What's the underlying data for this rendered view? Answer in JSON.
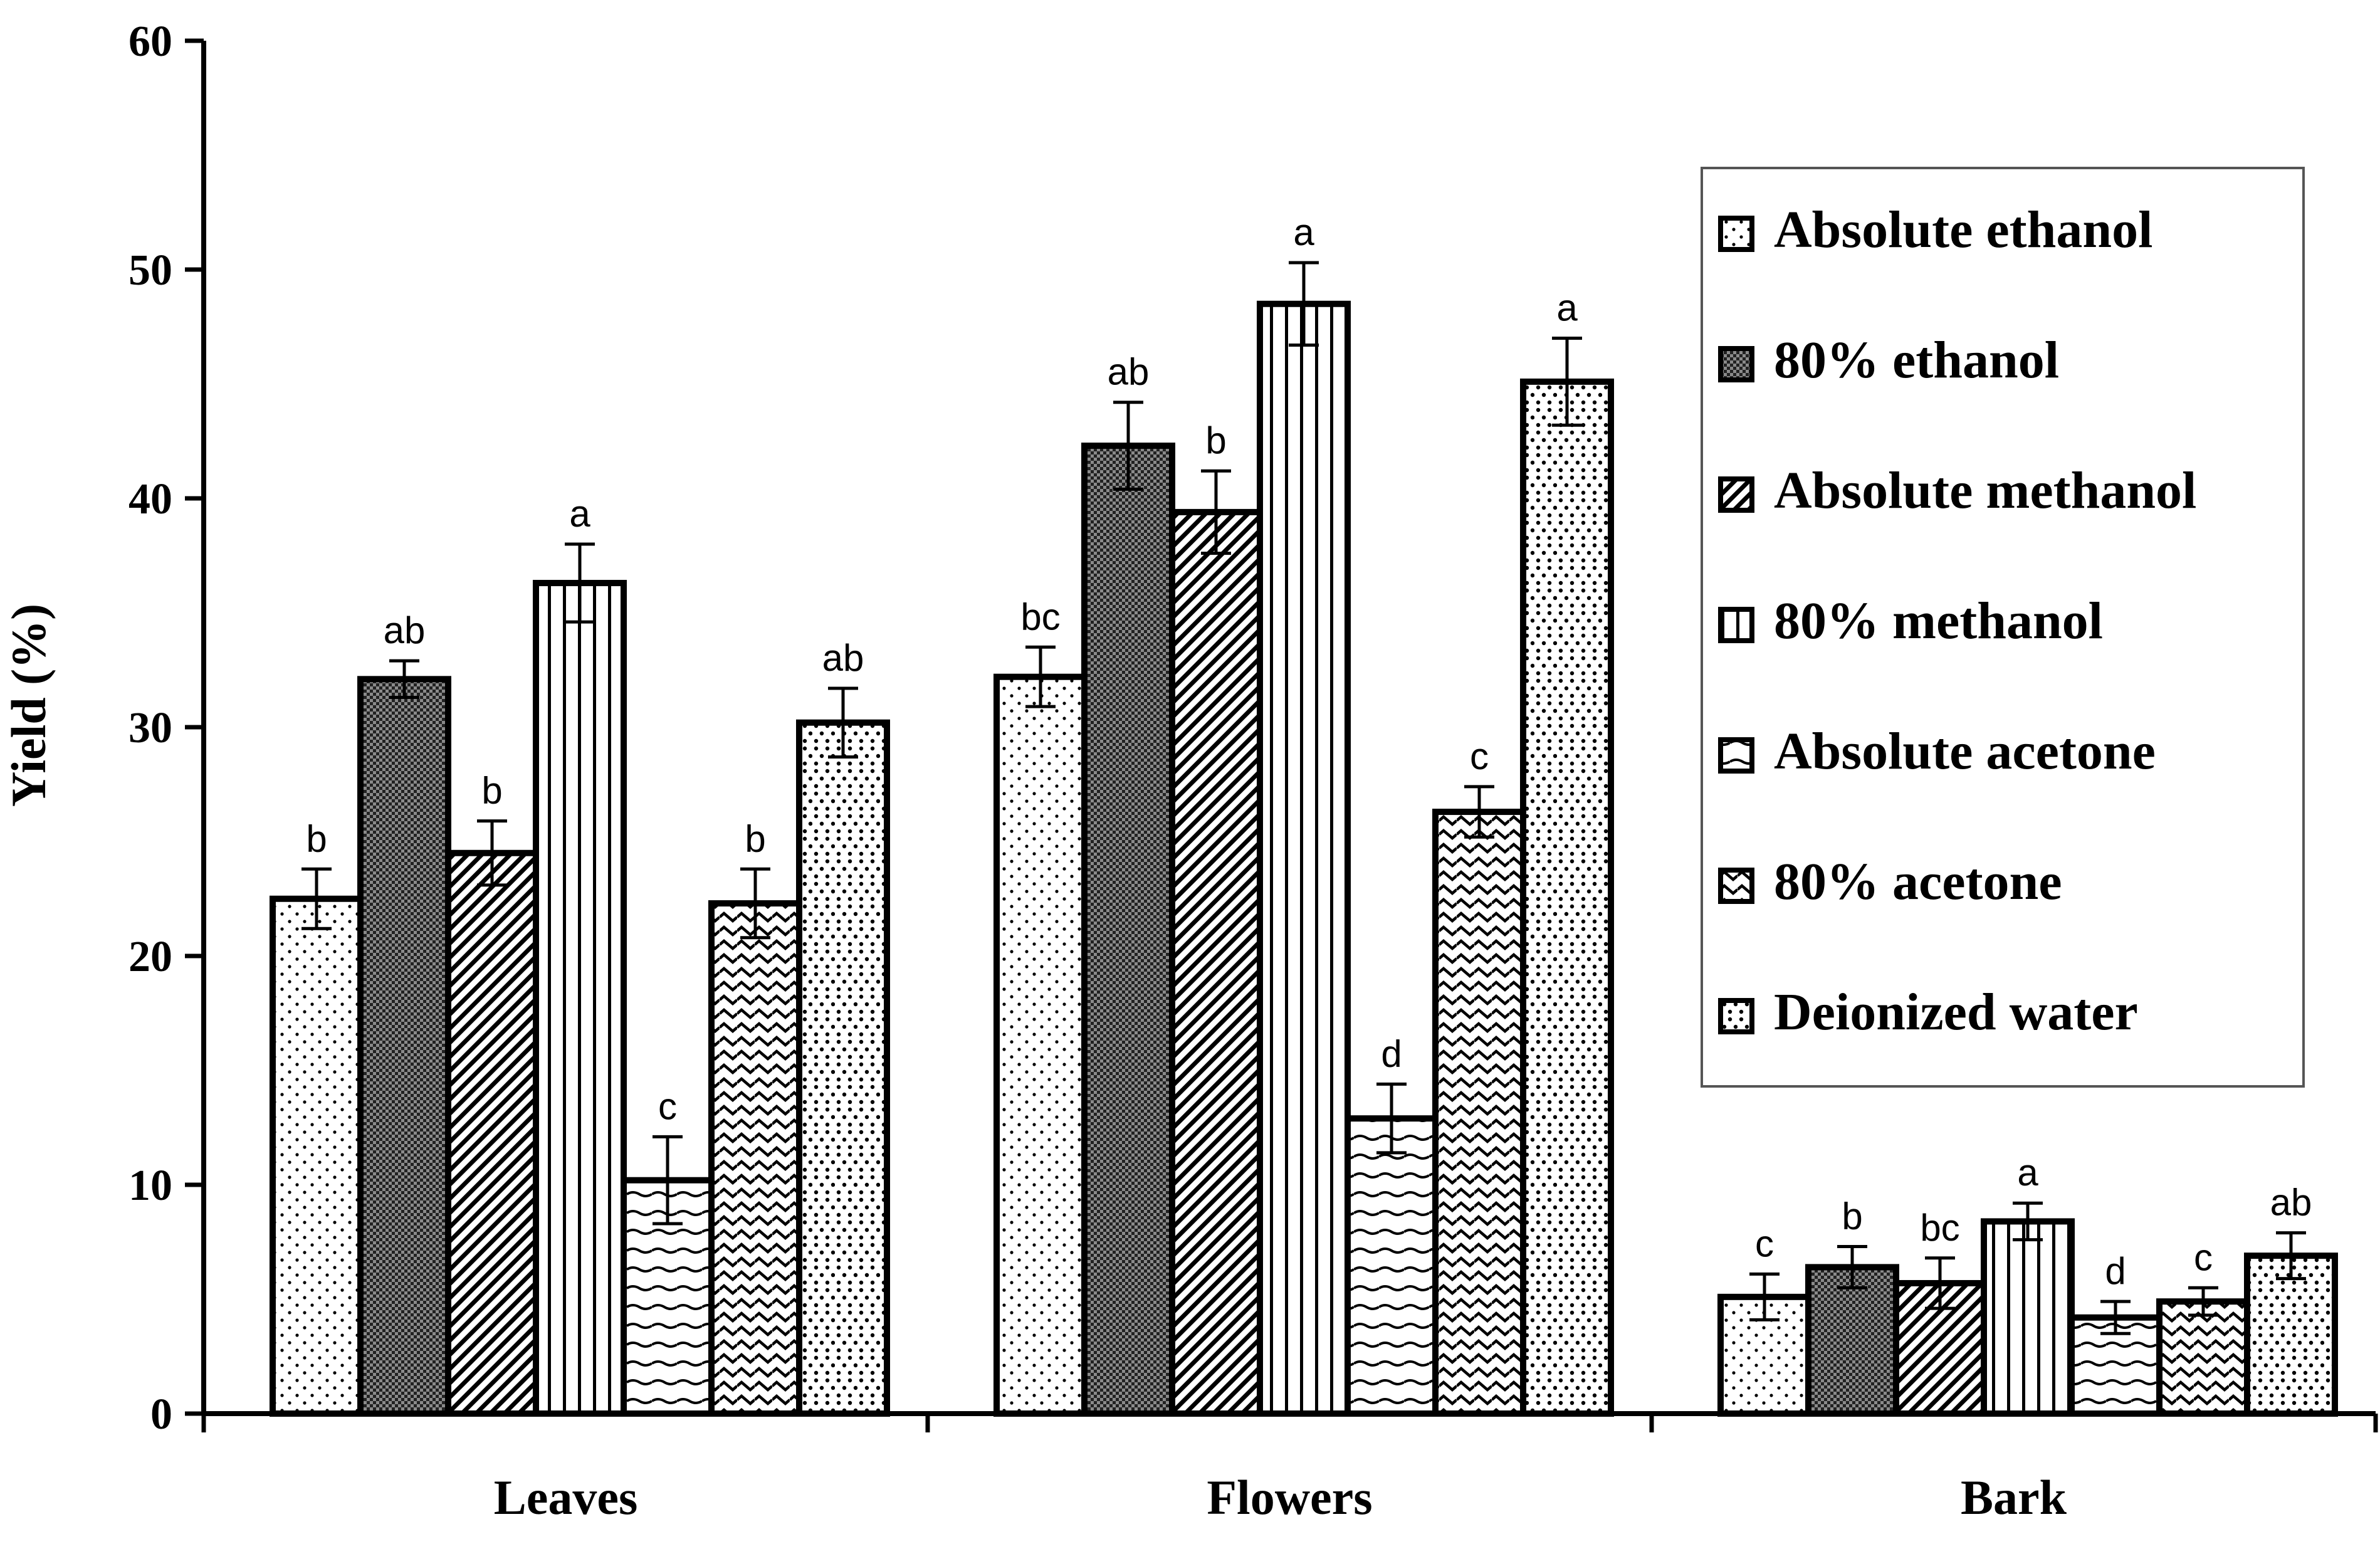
{
  "chart_data": {
    "type": "bar",
    "title": "",
    "xlabel": "",
    "ylabel": "Yield (%)",
    "ylim": [
      0,
      60
    ],
    "yticks": [
      0,
      10,
      20,
      30,
      40,
      50,
      60
    ],
    "categories": [
      "Leaves",
      "Flowers",
      "Bark"
    ],
    "series": [
      {
        "name": "Absolute ethanol",
        "pattern": "dots",
        "values": [
          22.5,
          32.2,
          5.1
        ],
        "errors": [
          1.3,
          1.3,
          1.0
        ],
        "letters": [
          "b",
          "bc",
          "c"
        ]
      },
      {
        "name": "80% ethanol",
        "pattern": "checker",
        "values": [
          32.1,
          42.3,
          6.4
        ],
        "errors": [
          0.8,
          1.9,
          0.9
        ],
        "letters": [
          "ab",
          "ab",
          "b"
        ]
      },
      {
        "name": "Absolute methanol",
        "pattern": "diagonal",
        "values": [
          24.5,
          39.4,
          5.7
        ],
        "errors": [
          1.4,
          1.8,
          1.1
        ],
        "letters": [
          "b",
          "b",
          "bc"
        ]
      },
      {
        "name": "80% methanol",
        "pattern": "vertical",
        "values": [
          36.3,
          48.5,
          8.4
        ],
        "errors": [
          1.7,
          1.8,
          0.8
        ],
        "letters": [
          "a",
          "a",
          "a"
        ]
      },
      {
        "name": "Absolute acetone",
        "pattern": "wave-h",
        "values": [
          10.2,
          12.9,
          4.2
        ],
        "errors": [
          1.9,
          1.5,
          0.7
        ],
        "letters": [
          "c",
          "d",
          "d"
        ]
      },
      {
        "name": "80% acetone",
        "pattern": "zigzag",
        "values": [
          22.3,
          26.3,
          4.9
        ],
        "errors": [
          1.5,
          1.1,
          0.6
        ],
        "letters": [
          "b",
          "c",
          "c"
        ]
      },
      {
        "name": "Deionized water",
        "pattern": "sparse",
        "values": [
          30.2,
          45.1,
          6.9
        ],
        "errors": [
          1.5,
          1.9,
          1.0
        ],
        "letters": [
          "ab",
          "a",
          "ab"
        ]
      }
    ],
    "legend_position": "right"
  }
}
